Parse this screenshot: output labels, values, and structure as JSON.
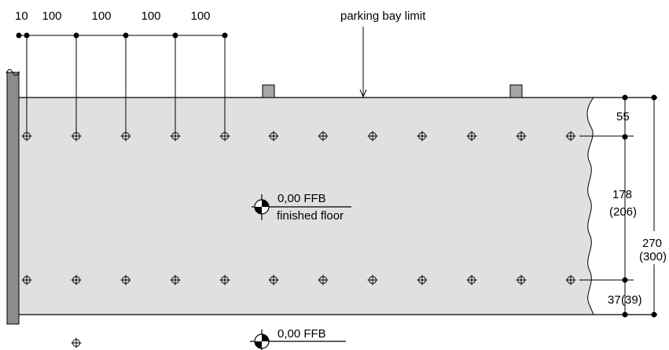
{
  "top_dims": [
    "10",
    "100",
    "100",
    "100",
    "100"
  ],
  "parking_bay_label": "parking bay limit",
  "floor_mark": {
    "level": "0,00 FFB",
    "caption": "finished floor"
  },
  "bottom_mark": {
    "level": "0,00 FFB"
  },
  "right_dims": {
    "d55": "55",
    "d178": "178",
    "d178_alt": "(206)",
    "d270": "270",
    "d270_alt": "(300)",
    "d37": "37",
    "d37_alt": "(39)"
  },
  "colors": {
    "floor_fill": "#e0e0e0",
    "wall_fill": "#8c8c8c",
    "post_fill": "#a6a6a6"
  }
}
